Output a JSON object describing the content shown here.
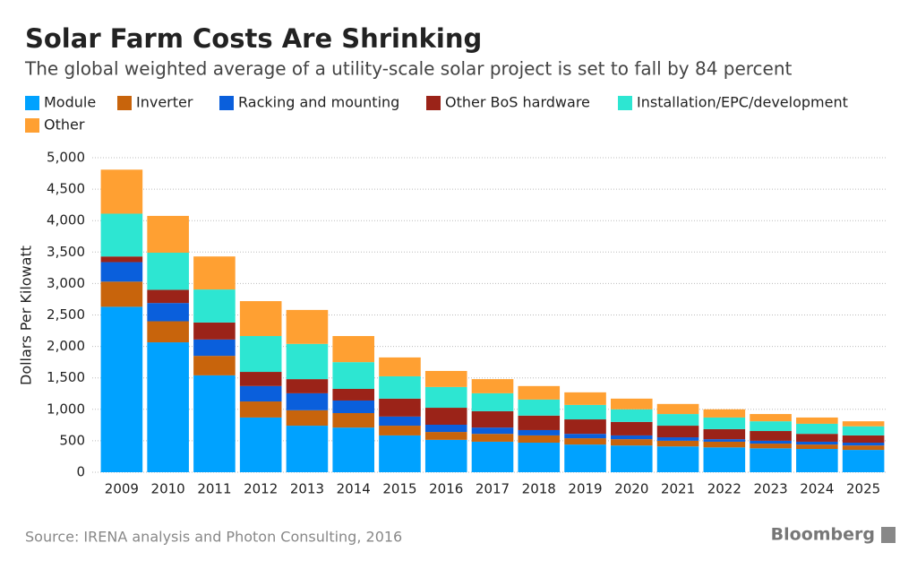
{
  "chart_data": {
    "type": "stacked_bar",
    "title": "Solar Farm Costs Are Shrinking",
    "subtitle": "The global weighted average of a utility-scale solar project is set to fall by 84 percent",
    "y_label": "Dollars Per Kilowatt",
    "source": "Source: IRENA analysis and Photon Consulting, 2016",
    "brand": "Bloomberg",
    "categories": [
      "2009",
      "2010",
      "2011",
      "2012",
      "2013",
      "2014",
      "2015",
      "2016",
      "2017",
      "2018",
      "2019",
      "2020",
      "2021",
      "2022",
      "2023",
      "2024",
      "2025"
    ],
    "series": [
      {
        "name": "Module",
        "color": "#00a2ff",
        "values": [
          2630,
          2065,
          1540,
          870,
          740,
          710,
          585,
          515,
          485,
          470,
          440,
          425,
          410,
          395,
          380,
          370,
          355
        ]
      },
      {
        "name": "Inverter",
        "color": "#c8640c",
        "values": [
          400,
          335,
          310,
          255,
          245,
          230,
          155,
          125,
          125,
          115,
          100,
          100,
          90,
          90,
          75,
          70,
          70
        ]
      },
      {
        "name": "Racking and mounting",
        "color": "#0a5fdc",
        "values": [
          310,
          290,
          260,
          245,
          270,
          200,
          145,
          115,
          100,
          85,
          70,
          60,
          55,
          40,
          45,
          45,
          45
        ]
      },
      {
        "name": "Other BoS hardware",
        "color": "#9b2318",
        "values": [
          90,
          210,
          270,
          225,
          225,
          185,
          285,
          270,
          260,
          230,
          230,
          215,
          185,
          160,
          155,
          125,
          115
        ]
      },
      {
        "name": "Installation/EPC/development",
        "color": "#2de6d2",
        "values": [
          680,
          590,
          525,
          570,
          560,
          425,
          355,
          330,
          285,
          255,
          230,
          200,
          185,
          185,
          155,
          160,
          145
        ]
      },
      {
        "name": "Other",
        "color": "#ffa032",
        "values": [
          700,
          585,
          525,
          555,
          540,
          415,
          300,
          255,
          225,
          215,
          200,
          170,
          160,
          130,
          115,
          100,
          80
        ]
      }
    ],
    "ylim": [
      0,
      5000
    ],
    "yticks": [
      0,
      500,
      {
        "value": 1000,
        "label": "1,000"
      },
      {
        "value": 1500,
        "label": "1,500"
      },
      {
        "value": 2000,
        "label": "2,000"
      },
      {
        "value": 2500,
        "label": "2,500"
      },
      {
        "value": 3000,
        "label": "3,000"
      },
      {
        "value": 3500,
        "label": "3,500"
      },
      {
        "value": 4000,
        "label": "4,000"
      },
      {
        "value": 4500,
        "label": "4,500"
      },
      {
        "value": 5000,
        "label": "5,000"
      }
    ],
    "grid": true
  }
}
